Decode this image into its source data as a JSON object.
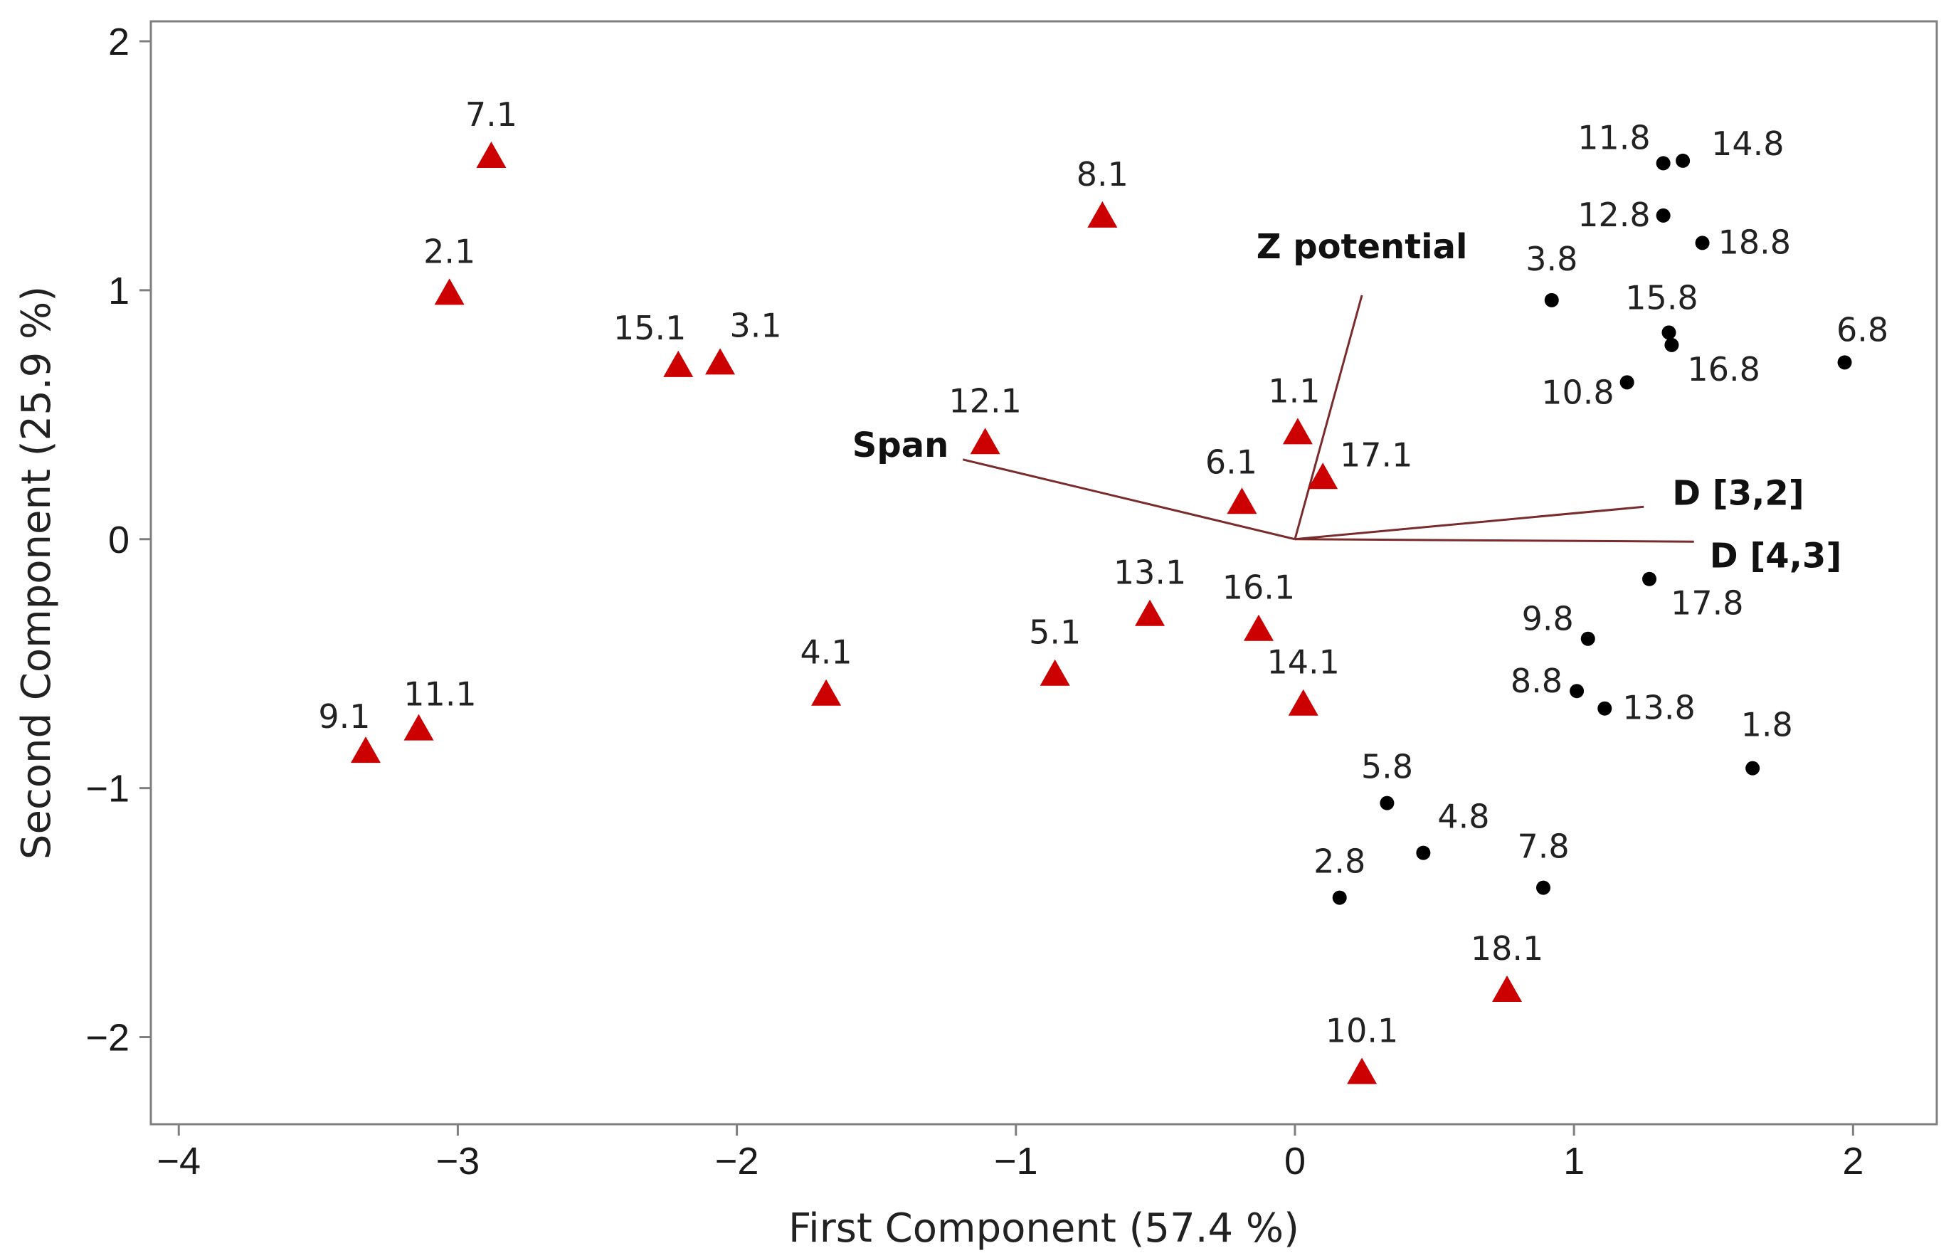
{
  "chart_data": {
    "type": "scatter",
    "title": "",
    "xlabel": "First Component (57.4 %)",
    "ylabel": "Second Component (25.9 %)",
    "xlim": [
      -4.1,
      2.3
    ],
    "ylim": [
      -2.35,
      2.08
    ],
    "xticks": [
      -4,
      -3,
      -2,
      -1,
      0,
      1,
      2
    ],
    "xtick_labels": [
      "−4",
      "−3",
      "−2",
      "−1",
      "0",
      "1",
      "2"
    ],
    "yticks": [
      -2,
      -1,
      0,
      1,
      2
    ],
    "ytick_labels": [
      "−2",
      "−1",
      "0",
      "1",
      "2"
    ],
    "grid": false,
    "series": [
      {
        "name": "triangles",
        "marker": "triangle",
        "color": "#cc0000",
        "points": [
          {
            "label": "7.1",
            "x": -2.88,
            "y": 1.54
          },
          {
            "label": "8.1",
            "x": -0.69,
            "y": 1.3
          },
          {
            "label": "2.1",
            "x": -3.03,
            "y": 0.99
          },
          {
            "label": "15.1",
            "x": -2.21,
            "y": 0.7
          },
          {
            "label": "3.1",
            "x": -2.06,
            "y": 0.71
          },
          {
            "label": "12.1",
            "x": -1.11,
            "y": 0.39
          },
          {
            "label": "1.1",
            "x": 0.01,
            "y": 0.43
          },
          {
            "label": "17.1",
            "x": 0.1,
            "y": 0.25
          },
          {
            "label": "6.1",
            "x": -0.19,
            "y": 0.15
          },
          {
            "label": "13.1",
            "x": -0.52,
            "y": -0.3
          },
          {
            "label": "16.1",
            "x": -0.13,
            "y": -0.36
          },
          {
            "label": "5.1",
            "x": -0.86,
            "y": -0.54
          },
          {
            "label": "4.1",
            "x": -1.68,
            "y": -0.62
          },
          {
            "label": "14.1",
            "x": 0.03,
            "y": -0.66
          },
          {
            "label": "9.1",
            "x": -3.33,
            "y": -0.85
          },
          {
            "label": "11.1",
            "x": -3.14,
            "y": -0.76
          },
          {
            "label": "18.1",
            "x": 0.76,
            "y": -1.81
          },
          {
            "label": "10.1",
            "x": 0.24,
            "y": -2.14
          }
        ]
      },
      {
        "name": "dots",
        "marker": "circle",
        "color": "#000000",
        "points": [
          {
            "label": "11.8",
            "x": 1.32,
            "y": 1.51
          },
          {
            "label": "14.8",
            "x": 1.39,
            "y": 1.52
          },
          {
            "label": "12.8",
            "x": 1.32,
            "y": 1.3
          },
          {
            "label": "18.8",
            "x": 1.46,
            "y": 1.19
          },
          {
            "label": "3.8",
            "x": 0.92,
            "y": 0.96
          },
          {
            "label": "15.8",
            "x": 1.34,
            "y": 0.83
          },
          {
            "label": "16.8",
            "x": 1.35,
            "y": 0.78
          },
          {
            "label": "6.8",
            "x": 1.97,
            "y": 0.71
          },
          {
            "label": "10.8",
            "x": 1.19,
            "y": 0.63
          },
          {
            "label": "17.8",
            "x": 1.27,
            "y": -0.16
          },
          {
            "label": "9.8",
            "x": 1.05,
            "y": -0.4
          },
          {
            "label": "8.8",
            "x": 1.01,
            "y": -0.61
          },
          {
            "label": "13.8",
            "x": 1.11,
            "y": -0.68
          },
          {
            "label": "1.8",
            "x": 1.64,
            "y": -0.92
          },
          {
            "label": "5.8",
            "x": 0.33,
            "y": -1.06
          },
          {
            "label": "4.8",
            "x": 0.46,
            "y": -1.26
          },
          {
            "label": "7.8",
            "x": 0.89,
            "y": -1.4
          },
          {
            "label": "2.8",
            "x": 0.16,
            "y": -1.44
          }
        ]
      }
    ],
    "loading_vectors": {
      "color": "#7a2b2b",
      "origin": [
        0,
        0
      ],
      "vectors": [
        {
          "label": "Z potential",
          "x": 0.24,
          "y": 0.98
        },
        {
          "label": "Span",
          "x": -1.19,
          "y": 0.32
        },
        {
          "label": "D [3,2]",
          "x": 1.25,
          "y": 0.13
        },
        {
          "label": "D [4,3]",
          "x": 1.43,
          "y": -0.01
        }
      ]
    }
  }
}
